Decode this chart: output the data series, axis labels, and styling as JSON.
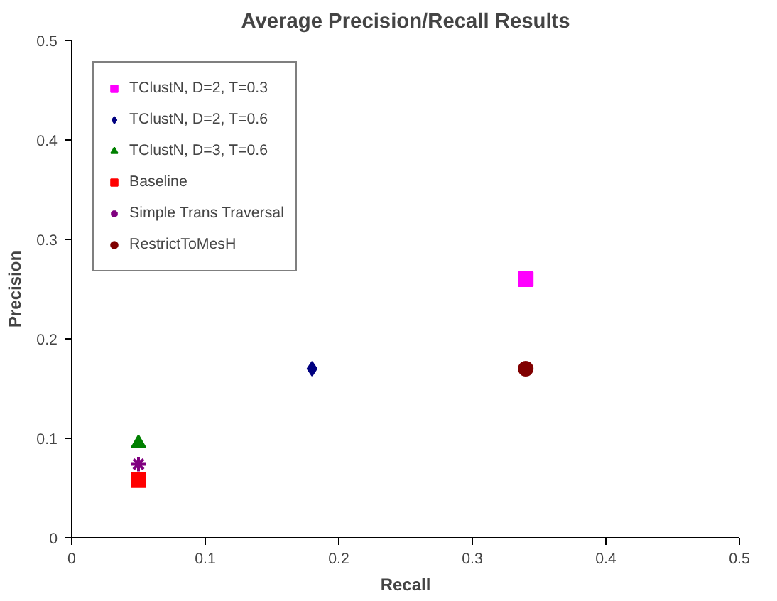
{
  "chart_data": {
    "type": "scatter",
    "title": "Average Precision/Recall Results",
    "xlabel": "Recall",
    "ylabel": "Precision",
    "xlim": [
      0,
      0.5
    ],
    "xticks": [
      0,
      0.1,
      0.2,
      0.3,
      0.4,
      0.5
    ],
    "ylim": [
      0,
      0.5
    ],
    "yticks": [
      0,
      0.1,
      0.2,
      0.3,
      0.4,
      0.5
    ],
    "grid": false,
    "legend": "top left",
    "series": [
      {
        "name": "TClustN, D=2, T=0.3",
        "color": "#ff00ff",
        "marker": "square",
        "x": [
          0.34
        ],
        "values": [
          0.26
        ]
      },
      {
        "name": "TClustN, D=2, T=0.6",
        "color": "#000080",
        "marker": "diamond",
        "x": [
          0.18
        ],
        "values": [
          0.17
        ]
      },
      {
        "name": "TClustN, D=3, T=0.6",
        "color": "#008000",
        "marker": "triangle",
        "x": [
          0.05
        ],
        "values": [
          0.095
        ]
      },
      {
        "name": "Baseline",
        "color": "#ff0000",
        "marker": "square",
        "x": [
          0.05
        ],
        "values": [
          0.058
        ]
      },
      {
        "name": "Simple Trans Traversal",
        "color": "#800080",
        "marker": "cross",
        "x": [
          0.05
        ],
        "values": [
          0.074
        ]
      },
      {
        "name": "RestrictToMesH",
        "color": "#800000",
        "marker": "circle",
        "x": [
          0.34
        ],
        "values": [
          0.17
        ]
      }
    ]
  }
}
